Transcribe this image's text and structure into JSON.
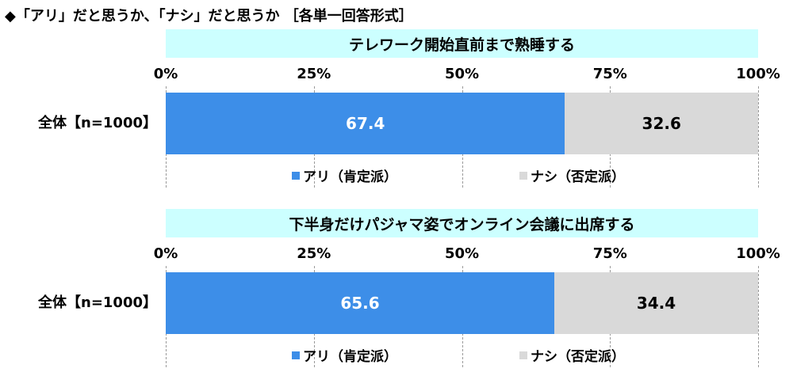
{
  "header": "◆「アリ」だと思うか、「ナシ」だと思うか ［各単一回答形式］",
  "legend": [
    {
      "label": "アリ（肯定派）",
      "color": "#3d8ee8"
    },
    {
      "label": "ナシ（否定派）",
      "color": "#d9d9d9"
    }
  ],
  "chart_data": [
    {
      "type": "bar",
      "orientation": "horizontal",
      "stacked": true,
      "title": "テレワーク開始直前まで熟睡する",
      "categories": [
        "全体【n=1000】"
      ],
      "x_ticks": [
        "0%",
        "25%",
        "50%",
        "75%",
        "100%"
      ],
      "xlim": [
        0,
        100
      ],
      "grid": true,
      "legend_position": "bottom",
      "series": [
        {
          "name": "アリ（肯定派）",
          "values": [
            67.4
          ],
          "color": "#3d8ee8"
        },
        {
          "name": "ナシ（否定派）",
          "values": [
            32.6
          ],
          "color": "#d9d9d9"
        }
      ]
    },
    {
      "type": "bar",
      "orientation": "horizontal",
      "stacked": true,
      "title": "下半身だけパジャマ姿でオンライン会議に出席する",
      "categories": [
        "全体【n=1000】"
      ],
      "x_ticks": [
        "0%",
        "25%",
        "50%",
        "75%",
        "100%"
      ],
      "xlim": [
        0,
        100
      ],
      "grid": true,
      "legend_position": "bottom",
      "series": [
        {
          "name": "アリ（肯定派）",
          "values": [
            65.6
          ],
          "color": "#3d8ee8"
        },
        {
          "name": "ナシ（否定派）",
          "values": [
            34.4
          ],
          "color": "#d9d9d9"
        }
      ]
    }
  ]
}
